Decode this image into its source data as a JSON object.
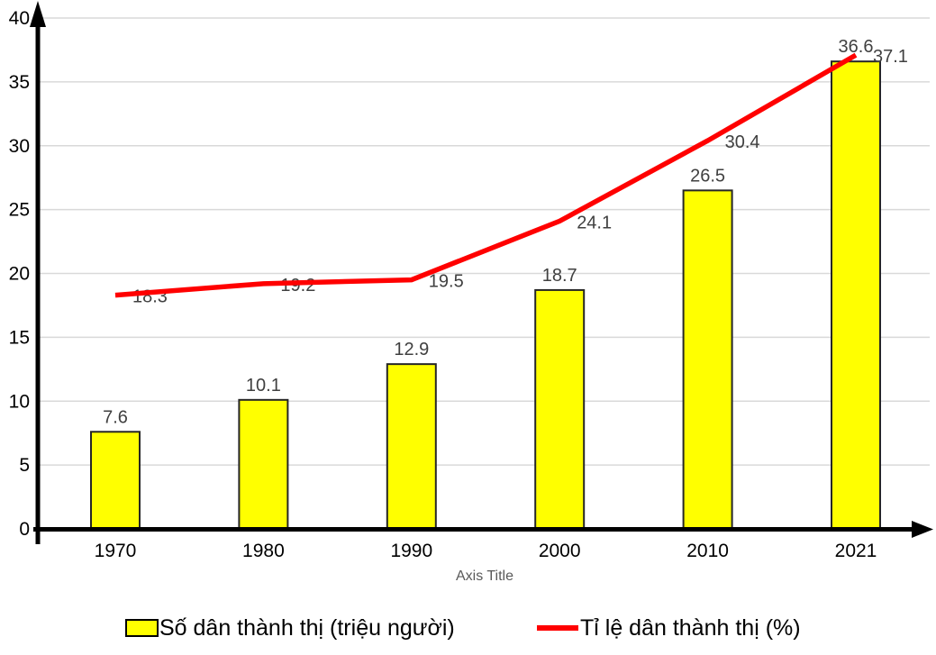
{
  "chart_data": {
    "type": "bar+line",
    "title": "",
    "categories": [
      "1970",
      "1980",
      "1990",
      "2000",
      "2010",
      "2021"
    ],
    "series": [
      {
        "name": "Số dân thành thị (triệu người)",
        "type": "bar",
        "color": "#FFFF00",
        "border_color": "#262626",
        "values": [
          7.6,
          10.1,
          12.9,
          18.7,
          26.5,
          36.6
        ]
      },
      {
        "name": "Tỉ lệ dân thành thị (%)",
        "type": "line",
        "color": "#FF0000",
        "values": [
          18.3,
          19.2,
          19.5,
          24.1,
          30.4,
          37.1
        ]
      }
    ],
    "xlabel": "Axis Title",
    "ylabel": "",
    "ylim": [
      0,
      40
    ],
    "ytick_step": 5,
    "yticks": [
      0,
      5,
      10,
      15,
      20,
      25,
      30,
      35,
      40
    ],
    "grid": true,
    "legend_position": "bottom",
    "colors": {
      "gridline": "#D9D9D9",
      "axis": "#000000",
      "data_label": "#404040",
      "tick_label": "#000000",
      "axis_title": "#595959",
      "background": "#FFFFFF"
    }
  }
}
